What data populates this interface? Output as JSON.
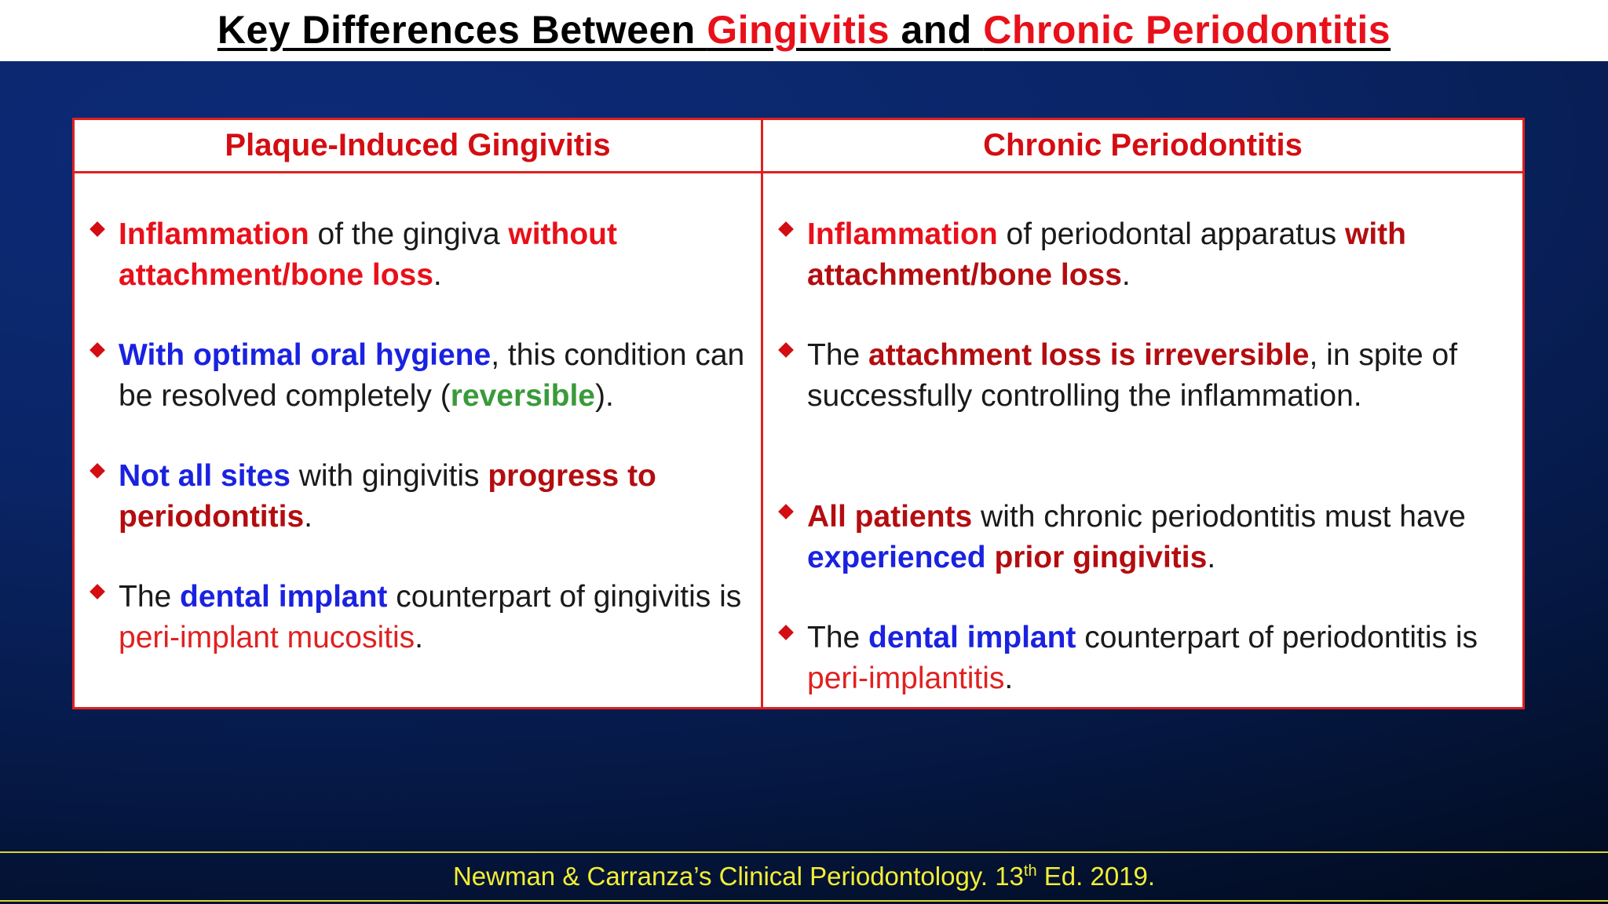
{
  "title": {
    "part1": "Key Differences Between ",
    "term1": "Gingivitis",
    "part2": " and ",
    "term2": "Chronic Periodontitis"
  },
  "table": {
    "left_header": "Plaque-Induced Gingivitis",
    "right_header": "Chronic Periodontitis",
    "left": {
      "b1": {
        "s1": "Inflammation",
        "s2": " of the gingiva ",
        "s3": "without attachment/bone loss",
        "s4": "."
      },
      "b2": {
        "s1": "With optimal oral hygiene",
        "s2": ", this condition can be resolved completely (",
        "s3": "reversible",
        "s4": ")."
      },
      "b3": {
        "s1": "Not all sites",
        "s2": " with gingivitis ",
        "s3": "progress to periodontitis",
        "s4": "."
      },
      "b4": {
        "s1": "The ",
        "s2": "dental implant",
        "s3": " counterpart of gingivitis is ",
        "s4": "peri-implant mucositis",
        "s5": "."
      }
    },
    "right": {
      "b1": {
        "s1": "Inflammation",
        "s2": " of periodontal apparatus ",
        "s3": "with attachment/bone loss",
        "s4": "."
      },
      "b2": {
        "s1": "The ",
        "s2": "attachment loss is irreversible",
        "s3": ", in spite of successfully controlling the inflammation."
      },
      "b3": {
        "s1": "All patients",
        "s2": " with chronic periodontitis must have ",
        "s3": "experienced",
        "s4": " ",
        "s5": "prior gingivitis",
        "s6": "."
      },
      "b4": {
        "s1": "The ",
        "s2": "dental implant",
        "s3": " counterpart of periodontitis is ",
        "s4": "peri-implantitis",
        "s5": "."
      }
    }
  },
  "footer": {
    "text1": "Newman & Carranza’s Clinical Periodontology. 13",
    "sup": "th",
    "text2": " Ed. 2019."
  },
  "colors": {
    "title_red": "#e8101a",
    "table_border": "#e02020",
    "emphasis_blue": "#1a22e0",
    "emphasis_green": "#3a9a3a",
    "footer_yellow": "#f2ee35",
    "background_navy": "#0a2566"
  }
}
